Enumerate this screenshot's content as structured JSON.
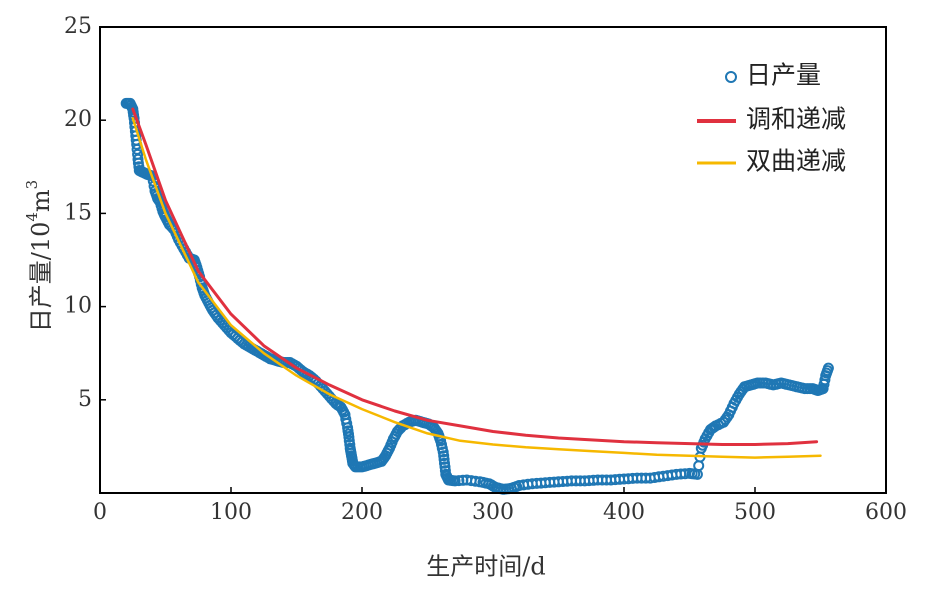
{
  "chart_data": {
    "type": "scatter",
    "title": "",
    "xlabel": "生产时间/d",
    "ylabel": {
      "main": "日产量/10",
      "exp1": "4",
      "mid": "m",
      "exp2": "3"
    },
    "xlim": [
      0,
      600
    ],
    "ylim": [
      0,
      25
    ],
    "xticks": [
      "0",
      "100",
      "200",
      "300",
      "400",
      "500",
      "600"
    ],
    "yticks": [
      "5",
      "10",
      "15",
      "20",
      "25"
    ],
    "grid": false,
    "legend_position": "top-right",
    "series": [
      {
        "name": "日产量",
        "kind": "scatter",
        "color": "#1f77b4",
        "points": [
          [
            20,
            20.9
          ],
          [
            23,
            20.9
          ],
          [
            25,
            20.6
          ],
          [
            26,
            20.1
          ],
          [
            27,
            19.4
          ],
          [
            28,
            18.7
          ],
          [
            29,
            17.9
          ],
          [
            30,
            17.3
          ],
          [
            33,
            17.2
          ],
          [
            36,
            17.1
          ],
          [
            40,
            17.0
          ],
          [
            42,
            16.2
          ],
          [
            44,
            15.8
          ],
          [
            46,
            15.6
          ],
          [
            48,
            15.1
          ],
          [
            50,
            14.8
          ],
          [
            53,
            14.4
          ],
          [
            57,
            14.1
          ],
          [
            60,
            13.6
          ],
          [
            64,
            13.1
          ],
          [
            68,
            12.6
          ],
          [
            72,
            12.5
          ],
          [
            74,
            12.1
          ],
          [
            76,
            11.6
          ],
          [
            78,
            11.0
          ],
          [
            80,
            10.6
          ],
          [
            83,
            10.2
          ],
          [
            86,
            9.8
          ],
          [
            90,
            9.4
          ],
          [
            95,
            9.0
          ],
          [
            100,
            8.6
          ],
          [
            105,
            8.3
          ],
          [
            110,
            8.0
          ],
          [
            115,
            7.8
          ],
          [
            120,
            7.6
          ],
          [
            125,
            7.4
          ],
          [
            130,
            7.2
          ],
          [
            135,
            7.1
          ],
          [
            140,
            7.0
          ],
          [
            145,
            7.0
          ],
          [
            150,
            6.8
          ],
          [
            155,
            6.5
          ],
          [
            160,
            6.3
          ],
          [
            165,
            6.0
          ],
          [
            170,
            5.6
          ],
          [
            175,
            5.2
          ],
          [
            180,
            4.8
          ],
          [
            184,
            4.6
          ],
          [
            187,
            4.2
          ],
          [
            189,
            3.5
          ],
          [
            190,
            3.0
          ],
          [
            191,
            2.4
          ],
          [
            192,
            2.0
          ],
          [
            193,
            1.6
          ],
          [
            195,
            1.4
          ],
          [
            200,
            1.4
          ],
          [
            205,
            1.5
          ],
          [
            210,
            1.6
          ],
          [
            215,
            1.7
          ],
          [
            218,
            2.0
          ],
          [
            221,
            2.4
          ],
          [
            224,
            2.9
          ],
          [
            227,
            3.3
          ],
          [
            231,
            3.6
          ],
          [
            236,
            3.8
          ],
          [
            241,
            3.9
          ],
          [
            246,
            3.8
          ],
          [
            251,
            3.7
          ],
          [
            255,
            3.5
          ],
          [
            258,
            3.2
          ],
          [
            260,
            2.8
          ],
          [
            262,
            2.2
          ],
          [
            263,
            1.6
          ],
          [
            264,
            1.0
          ],
          [
            266,
            0.7
          ],
          [
            271,
            0.65
          ],
          [
            280,
            0.7
          ],
          [
            290,
            0.6
          ],
          [
            297,
            0.5
          ],
          [
            302,
            0.3
          ],
          [
            308,
            0.2
          ],
          [
            314,
            0.25
          ],
          [
            320,
            0.4
          ],
          [
            330,
            0.5
          ],
          [
            340,
            0.55
          ],
          [
            350,
            0.6
          ],
          [
            360,
            0.65
          ],
          [
            370,
            0.65
          ],
          [
            380,
            0.7
          ],
          [
            390,
            0.7
          ],
          [
            400,
            0.75
          ],
          [
            410,
            0.8
          ],
          [
            420,
            0.8
          ],
          [
            430,
            0.9
          ],
          [
            440,
            1.0
          ],
          [
            450,
            1.05
          ],
          [
            456,
            1.0
          ],
          [
            459,
            2.4
          ],
          [
            462,
            2.9
          ],
          [
            466,
            3.4
          ],
          [
            470,
            3.6
          ],
          [
            476,
            3.8
          ],
          [
            480,
            4.2
          ],
          [
            484,
            4.8
          ],
          [
            488,
            5.3
          ],
          [
            492,
            5.7
          ],
          [
            497,
            5.8
          ],
          [
            502,
            5.9
          ],
          [
            508,
            5.9
          ],
          [
            514,
            5.8
          ],
          [
            520,
            5.9
          ],
          [
            526,
            5.8
          ],
          [
            532,
            5.7
          ],
          [
            538,
            5.6
          ],
          [
            544,
            5.6
          ],
          [
            548,
            5.5
          ],
          [
            552,
            5.6
          ],
          [
            554,
            6.3
          ],
          [
            556,
            6.7
          ]
        ]
      },
      {
        "name": "调和递减",
        "kind": "line",
        "color": "#e0313f",
        "points": [
          [
            25,
            20.6
          ],
          [
            35,
            18.7
          ],
          [
            50,
            15.7
          ],
          [
            75,
            11.9
          ],
          [
            100,
            9.6
          ],
          [
            125,
            7.9
          ],
          [
            150,
            6.7
          ],
          [
            175,
            5.8
          ],
          [
            200,
            5.0
          ],
          [
            225,
            4.4
          ],
          [
            250,
            3.9
          ],
          [
            275,
            3.6
          ],
          [
            300,
            3.3
          ],
          [
            325,
            3.1
          ],
          [
            350,
            2.95
          ],
          [
            375,
            2.85
          ],
          [
            400,
            2.75
          ],
          [
            425,
            2.7
          ],
          [
            450,
            2.65
          ],
          [
            475,
            2.6
          ],
          [
            500,
            2.6
          ],
          [
            525,
            2.65
          ],
          [
            547,
            2.75
          ]
        ]
      },
      {
        "name": "双曲递减",
        "kind": "line",
        "color": "#f6b800",
        "points": [
          [
            25,
            20.1
          ],
          [
            35,
            17.9
          ],
          [
            50,
            15.0
          ],
          [
            75,
            11.3
          ],
          [
            100,
            9.0
          ],
          [
            125,
            7.5
          ],
          [
            150,
            6.3
          ],
          [
            175,
            5.3
          ],
          [
            200,
            4.5
          ],
          [
            225,
            3.8
          ],
          [
            250,
            3.2
          ],
          [
            275,
            2.8
          ],
          [
            300,
            2.6
          ],
          [
            325,
            2.45
          ],
          [
            350,
            2.35
          ],
          [
            375,
            2.25
          ],
          [
            400,
            2.15
          ],
          [
            425,
            2.05
          ],
          [
            450,
            2.0
          ],
          [
            475,
            1.95
          ],
          [
            500,
            1.9
          ],
          [
            525,
            1.95
          ],
          [
            550,
            2.0
          ]
        ]
      }
    ]
  }
}
